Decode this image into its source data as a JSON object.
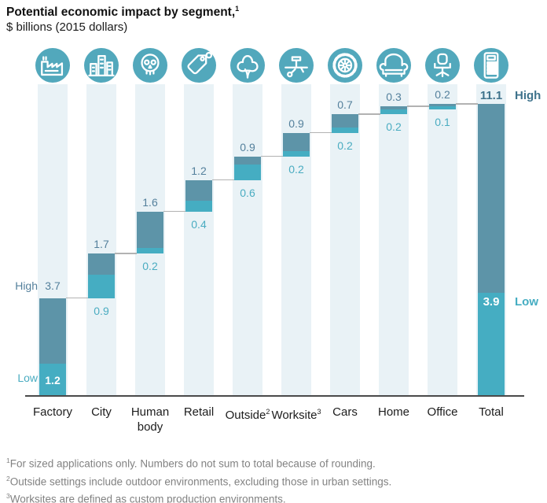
{
  "header": {
    "title": "Potential economic impact by segment,",
    "title_sup": "1",
    "subtitle": "$ billions (2015 dollars)"
  },
  "colors": {
    "bar_high": "#5d94a8",
    "bar_low": "#45adc2",
    "icon_circle": "#52a8bc",
    "stripe": "#e9f2f6",
    "connector": "#b2b2b2",
    "axis": "#4a4a4a",
    "label_high_text": "#54809c",
    "label_low_text": "#4aacc1",
    "label_bold_high": "#3f738c",
    "label_bold_low": "#45adc2",
    "footnote_text": "#828282"
  },
  "chart_data": {
    "type": "bar",
    "subtype": "waterfall",
    "title": "Potential economic impact by segment,",
    "units": "$ billions (2015 dollars)",
    "ylim": [
      0,
      11.1
    ],
    "grid": false,
    "legend": {
      "high_label": "High",
      "low_label": "Low"
    },
    "categories": [
      "Factory",
      "City",
      "Human body",
      "Retail",
      "Outside",
      "Worksite",
      "Cars",
      "Home",
      "Office",
      "Total"
    ],
    "segments": [
      {
        "label": "Factory",
        "label_sup": "",
        "icon": "factory-icon",
        "low": 1.2,
        "high": 3.7,
        "start": 0
      },
      {
        "label": "City",
        "label_sup": "",
        "icon": "city-icon",
        "low": 0.9,
        "high": 1.7,
        "start": 3.7
      },
      {
        "label": "Human body",
        "label_sup": "",
        "icon": "skull-icon",
        "low": 0.2,
        "high": 1.6,
        "start": 5.4
      },
      {
        "label": "Retail",
        "label_sup": "",
        "icon": "price-tag-icon",
        "low": 0.4,
        "high": 1.2,
        "start": 7.0
      },
      {
        "label": "Outside",
        "label_sup": "2",
        "icon": "tree-icon",
        "low": 0.6,
        "high": 0.9,
        "start": 8.2
      },
      {
        "label": "Worksite",
        "label_sup": "3",
        "icon": "tools-icon",
        "low": 0.2,
        "high": 0.9,
        "start": 9.1
      },
      {
        "label": "Cars",
        "label_sup": "",
        "icon": "tire-icon",
        "low": 0.2,
        "high": 0.7,
        "start": 10.0
      },
      {
        "label": "Home",
        "label_sup": "",
        "icon": "armchair-icon",
        "low": 0.2,
        "high": 0.3,
        "start": 10.7
      },
      {
        "label": "Office",
        "label_sup": "",
        "icon": "office-chair-icon",
        "low": 0.1,
        "high": 0.2,
        "start": 10.9
      }
    ],
    "total": {
      "label": "Total",
      "label_sup": "",
      "icon": "calculator-icon",
      "low": 3.9,
      "high": 11.1
    }
  },
  "footnotes": [
    {
      "sup": "1",
      "text": "For sized applications only. Numbers do not sum to total because of rounding."
    },
    {
      "sup": "2",
      "text": "Outside settings include outdoor environments, excluding those in urban settings."
    },
    {
      "sup": "3",
      "text": "Worksites are defined as custom production environments."
    }
  ]
}
